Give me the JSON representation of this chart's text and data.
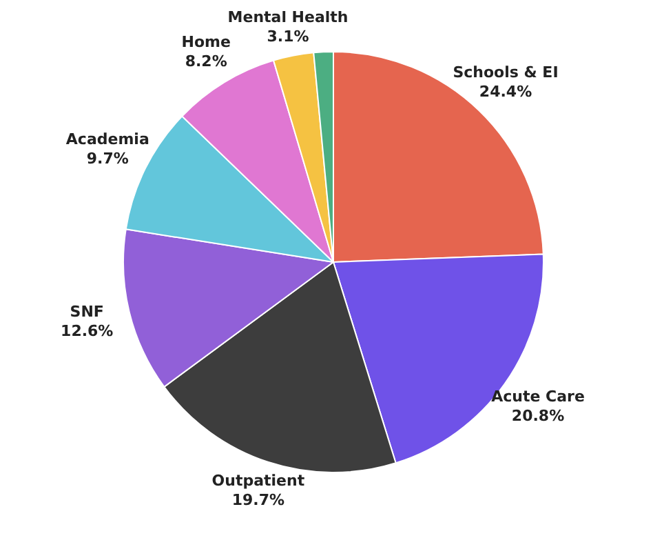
{
  "chart_data": {
    "type": "pie",
    "categories": [
      "Schools & EI",
      "Acute Care",
      "Outpatient",
      "SNF",
      "Academia",
      "Home",
      "Mental Health",
      null
    ],
    "values": [
      24.4,
      20.8,
      19.7,
      12.6,
      9.7,
      8.2,
      3.1,
      1.5
    ],
    "value_labels": [
      "24.4%",
      "20.8%",
      "19.7%",
      "12.6%",
      "9.7%",
      "8.2%",
      "3.1%",
      null
    ],
    "colors": [
      "#e5654f",
      "#6f52e8",
      "#3d3d3d",
      "#9160d8",
      "#62c6db",
      "#e077d2",
      "#f5c242",
      "#4cae82"
    ],
    "legend": false
  }
}
